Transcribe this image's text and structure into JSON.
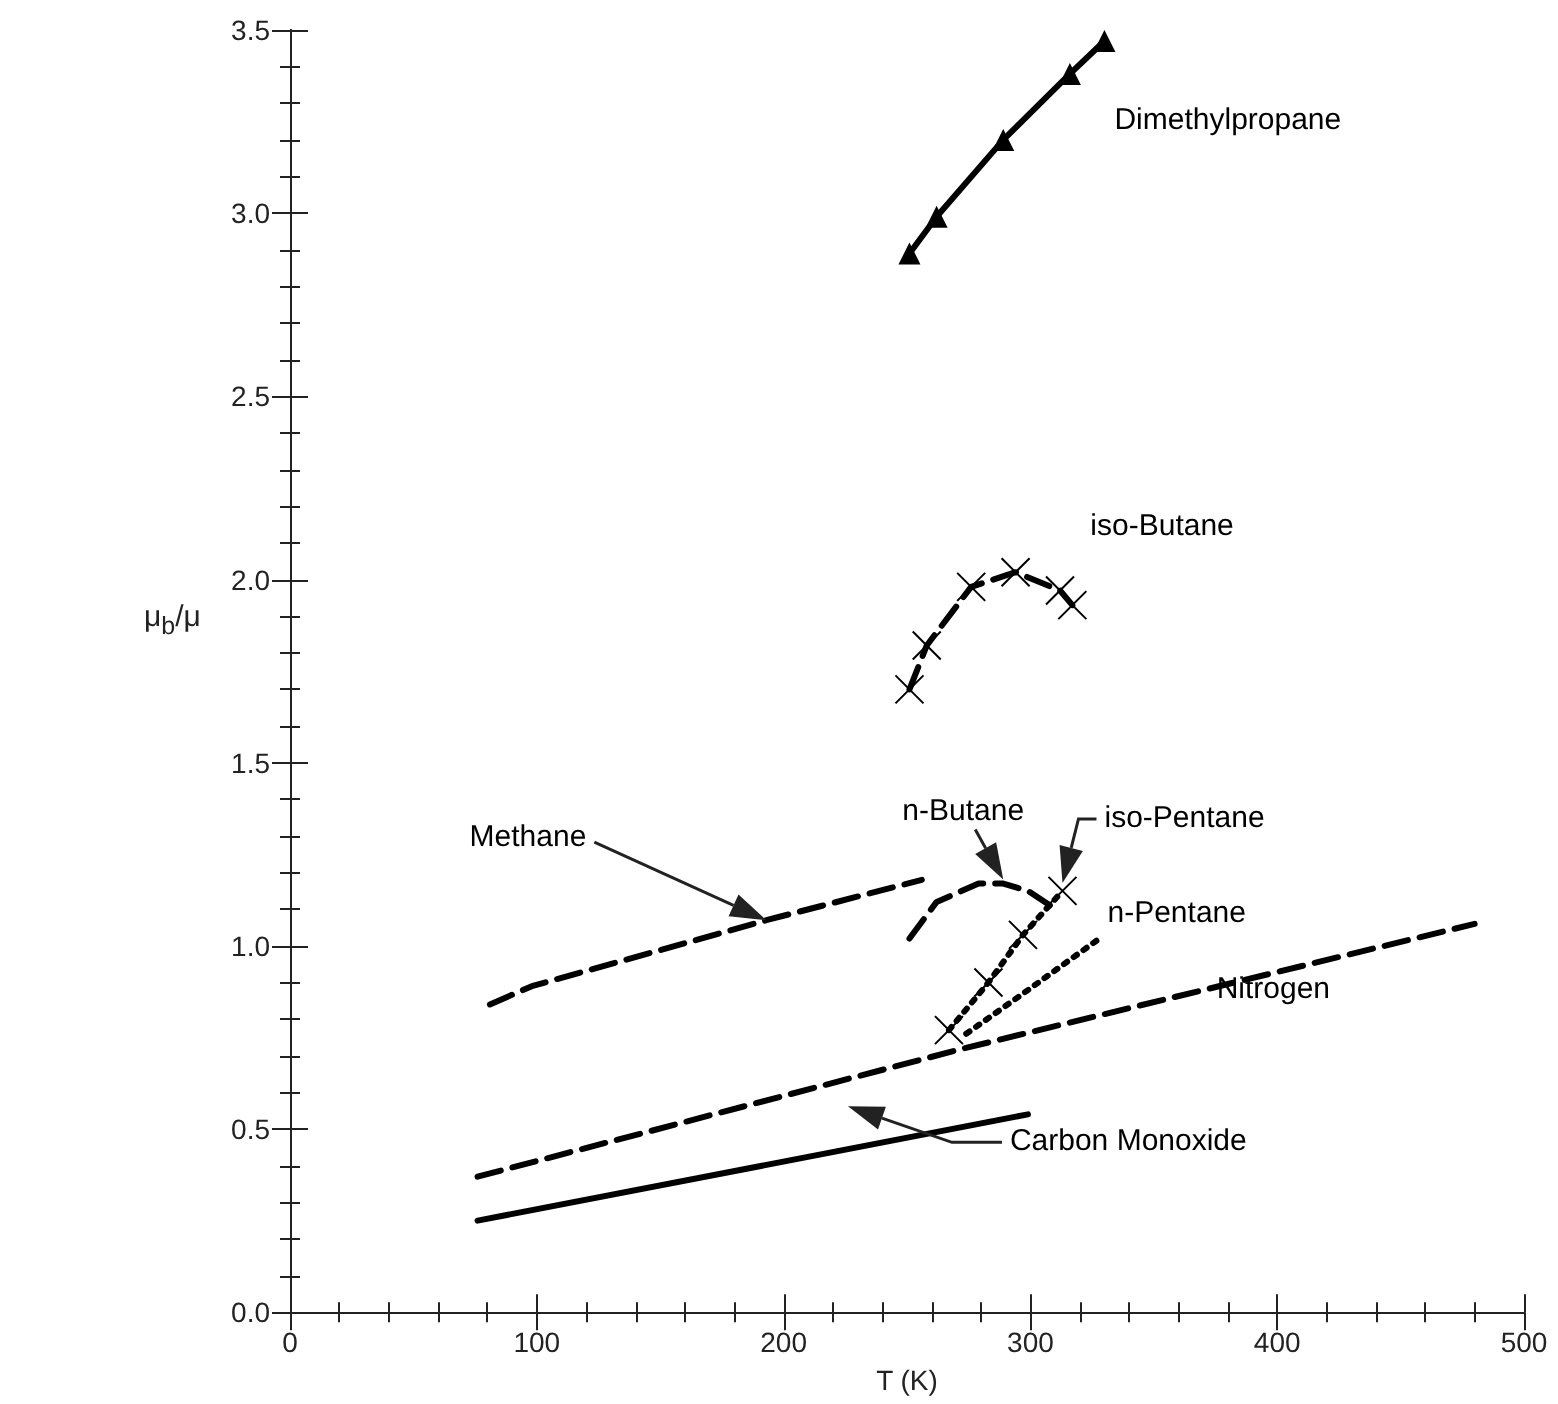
{
  "chart_data": {
    "type": "line",
    "xlabel": "T (K)",
    "ylabel": "μ$_{b}$/μ",
    "xlim": [
      0,
      500
    ],
    "xticks": [
      0,
      100,
      200,
      300,
      400,
      500
    ],
    "ylim": [
      0,
      3.5
    ],
    "yticks": [
      {
        "value": 0,
        "label": "0.0"
      },
      {
        "value": 0.5,
        "label": "0.5"
      },
      {
        "value": 1,
        "label": "1.0"
      },
      {
        "value": 1.5,
        "label": "1.5"
      },
      {
        "value": 2,
        "label": "2.0"
      },
      {
        "value": 2.5,
        "label": "2.5"
      },
      {
        "value": 3,
        "label": "3.0"
      },
      {
        "value": 3.5,
        "label": "3.5"
      }
    ],
    "grid": false,
    "legend": false,
    "color": "#000000",
    "series": [
      {
        "name": "Dimethylpropane",
        "line_style": "solid",
        "marker": "triangle",
        "x": [
          251,
          262,
          289,
          316,
          330
        ],
        "values": [
          2.89,
          2.99,
          3.2,
          3.38,
          3.47
        ]
      },
      {
        "name": "iso-Butane",
        "line_style": "dashed",
        "marker": "cross",
        "x": [
          251,
          258,
          276,
          294,
          312,
          317
        ],
        "values": [
          1.7,
          1.82,
          1.98,
          2.02,
          1.97,
          1.93
        ]
      },
      {
        "name": "n-Butane",
        "line_style": "dashed",
        "marker": "none",
        "x": [
          251,
          262,
          279,
          289,
          299,
          308
        ],
        "values": [
          1.02,
          1.12,
          1.17,
          1.17,
          1.15,
          1.11
        ]
      },
      {
        "name": "iso-Pentane",
        "line_style": "dotted",
        "marker": "cross",
        "x": [
          267,
          283,
          297,
          313
        ],
        "values": [
          0.77,
          0.9,
          1.03,
          1.15
        ]
      },
      {
        "name": "n-Pentane",
        "line_style": "dotted",
        "marker": "none",
        "x": [
          274,
          295,
          328
        ],
        "values": [
          0.76,
          0.86,
          1.02
        ]
      },
      {
        "name": "Methane",
        "line_style": "dashed",
        "marker": "none",
        "x": [
          81,
          98,
          193,
          256
        ],
        "values": [
          0.84,
          0.89,
          1.07,
          1.18
        ]
      },
      {
        "name": "Nitrogen",
        "line_style": "dashed",
        "marker": "none",
        "x": [
          76,
          256,
          273,
          480
        ],
        "values": [
          0.37,
          0.69,
          0.72,
          1.06
        ]
      },
      {
        "name": "Carbon Monoxide",
        "line_style": "solid",
        "marker": "none",
        "x": [
          76,
          299
        ],
        "values": [
          0.25,
          0.54
        ]
      }
    ]
  }
}
